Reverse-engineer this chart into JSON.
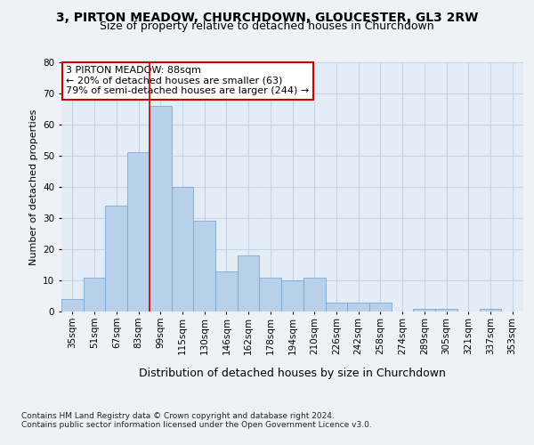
{
  "title": "3, PIRTON MEADOW, CHURCHDOWN, GLOUCESTER, GL3 2RW",
  "subtitle": "Size of property relative to detached houses in Churchdown",
  "xlabel": "Distribution of detached houses by size in Churchdown",
  "ylabel": "Number of detached properties",
  "footer_line1": "Contains HM Land Registry data © Crown copyright and database right 2024.",
  "footer_line2": "Contains public sector information licensed under the Open Government Licence v3.0.",
  "categories": [
    "35sqm",
    "51sqm",
    "67sqm",
    "83sqm",
    "99sqm",
    "115sqm",
    "130sqm",
    "146sqm",
    "162sqm",
    "178sqm",
    "194sqm",
    "210sqm",
    "226sqm",
    "242sqm",
    "258sqm",
    "274sqm",
    "289sqm",
    "305sqm",
    "321sqm",
    "337sqm",
    "353sqm"
  ],
  "values": [
    4,
    11,
    34,
    51,
    66,
    40,
    29,
    13,
    18,
    11,
    10,
    11,
    3,
    3,
    3,
    0,
    1,
    1,
    0,
    1,
    0
  ],
  "bar_color": "#b8d0ea",
  "bar_edge_color": "#6aa0cc",
  "annotation_box_text_line1": "3 PIRTON MEADOW: 88sqm",
  "annotation_box_text_line2": "← 20% of detached houses are smaller (63)",
  "annotation_box_text_line3": "79% of semi-detached houses are larger (244) →",
  "annotation_box_color": "#cc0000",
  "vline_color": "#cc0000",
  "ylim": [
    0,
    80
  ],
  "yticks": [
    0,
    10,
    20,
    30,
    40,
    50,
    60,
    70,
    80
  ],
  "background_color": "#eef2f8",
  "plot_background": "#e4ecf6",
  "grid_color": "#c8d4e4",
  "title_fontsize": 10,
  "subtitle_fontsize": 9,
  "ylabel_fontsize": 8,
  "xlabel_fontsize": 9,
  "tick_fontsize": 7.5,
  "footer_fontsize": 6.5,
  "ann_fontsize": 8
}
